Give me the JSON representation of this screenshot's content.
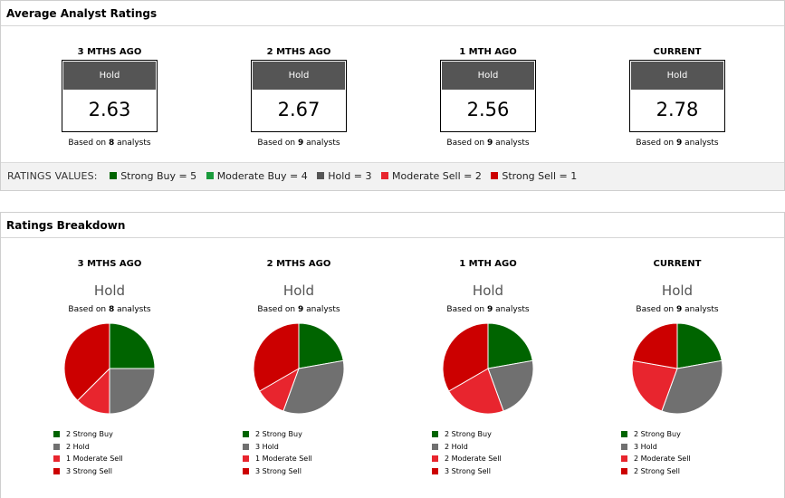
{
  "avg": {
    "title": "Average Analyst Ratings",
    "columns": [
      {
        "period": "3 MTHS AGO",
        "label": "Hold",
        "value": "2.63",
        "basis_pre": "Based on ",
        "count": "8",
        "basis_post": " analysts"
      },
      {
        "period": "2 MTHS AGO",
        "label": "Hold",
        "value": "2.67",
        "basis_pre": "Based on ",
        "count": "9",
        "basis_post": " analysts"
      },
      {
        "period": "1 MTH AGO",
        "label": "Hold",
        "value": "2.56",
        "basis_pre": "Based on ",
        "count": "9",
        "basis_post": " analysts"
      },
      {
        "period": "CURRENT",
        "label": "Hold",
        "value": "2.78",
        "basis_pre": "Based on ",
        "count": "9",
        "basis_post": " analysts"
      }
    ],
    "values_title": "RATINGS VALUES:",
    "values": [
      {
        "label": "Strong Buy = 5",
        "color": "#006400"
      },
      {
        "label": "Moderate Buy = 4",
        "color": "#1a9b3c"
      },
      {
        "label": "Hold = 3",
        "color": "#555555"
      },
      {
        "label": "Moderate Sell = 2",
        "color": "#e8252e"
      },
      {
        "label": "Strong Sell = 1",
        "color": "#cc0000"
      }
    ]
  },
  "breakdown": {
    "title": "Ratings Breakdown",
    "columns": [
      {
        "period": "3 MTHS AGO",
        "rating": "Hold",
        "basis_pre": "Based on ",
        "count": "8",
        "basis_post": " analysts",
        "legend": [
          "2 Strong Buy",
          "2 Hold",
          "1 Moderate Sell",
          "3 Strong Sell"
        ]
      },
      {
        "period": "2 MTHS AGO",
        "rating": "Hold",
        "basis_pre": "Based on ",
        "count": "9",
        "basis_post": " analysts",
        "legend": [
          "2 Strong Buy",
          "3 Hold",
          "1 Moderate Sell",
          "3 Strong Sell"
        ]
      },
      {
        "period": "1 MTH AGO",
        "rating": "Hold",
        "basis_pre": "Based on ",
        "count": "9",
        "basis_post": " analysts",
        "legend": [
          "2 Strong Buy",
          "2 Hold",
          "2 Moderate Sell",
          "3 Strong Sell"
        ]
      },
      {
        "period": "CURRENT",
        "rating": "Hold",
        "basis_pre": "Based on ",
        "count": "9",
        "basis_post": " analysts",
        "legend": [
          "2 Strong Buy",
          "3 Hold",
          "2 Moderate Sell",
          "2 Strong Sell"
        ]
      }
    ]
  },
  "chart_data": [
    {
      "type": "pie",
      "title": "3 MTHS AGO",
      "categories": [
        "Strong Buy",
        "Hold",
        "Moderate Sell",
        "Strong Sell"
      ],
      "values": [
        2,
        2,
        1,
        3
      ],
      "colors": [
        "#006400",
        "#707070",
        "#e8252e",
        "#cc0000"
      ]
    },
    {
      "type": "pie",
      "title": "2 MTHS AGO",
      "categories": [
        "Strong Buy",
        "Hold",
        "Moderate Sell",
        "Strong Sell"
      ],
      "values": [
        2,
        3,
        1,
        3
      ],
      "colors": [
        "#006400",
        "#707070",
        "#e8252e",
        "#cc0000"
      ]
    },
    {
      "type": "pie",
      "title": "1 MTH AGO",
      "categories": [
        "Strong Buy",
        "Hold",
        "Moderate Sell",
        "Strong Sell"
      ],
      "values": [
        2,
        2,
        2,
        3
      ],
      "colors": [
        "#006400",
        "#707070",
        "#e8252e",
        "#cc0000"
      ]
    },
    {
      "type": "pie",
      "title": "CURRENT",
      "categories": [
        "Strong Buy",
        "Hold",
        "Moderate Sell",
        "Strong Sell"
      ],
      "values": [
        2,
        3,
        2,
        2
      ],
      "colors": [
        "#006400",
        "#707070",
        "#e8252e",
        "#cc0000"
      ]
    }
  ]
}
